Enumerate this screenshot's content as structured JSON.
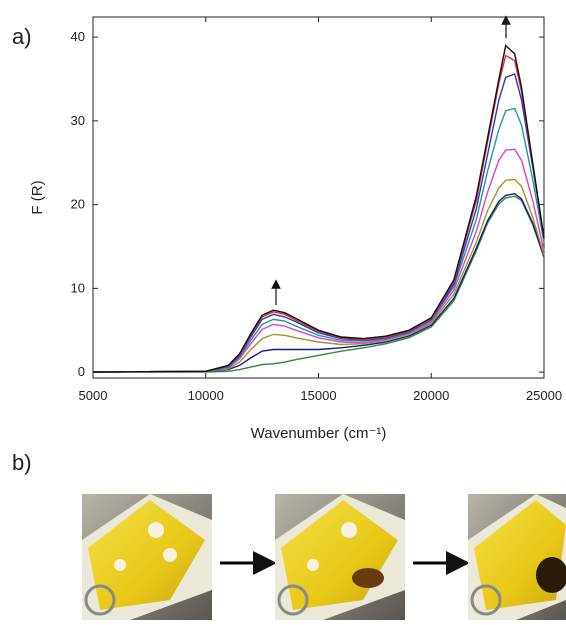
{
  "panel_labels": [
    "a)",
    "b)"
  ],
  "chart_data": {
    "type": "line",
    "x_label": "Wavenumber (cm⁻¹)",
    "y_label": "F (R)",
    "x": [
      5000,
      10000,
      11000,
      11500,
      12000,
      12500,
      13000,
      13500,
      14000,
      15000,
      16000,
      17000,
      18000,
      19000,
      20000,
      21000,
      22000,
      22500,
      23000,
      23300,
      23700,
      24000,
      24500,
      25000
    ],
    "series": [
      {
        "color": "#111111",
        "values": [
          0,
          0.1,
          0.8,
          2.2,
          4.6,
          6.8,
          7.4,
          7.1,
          6.4,
          5.0,
          4.2,
          4.0,
          4.3,
          5.0,
          6.5,
          11,
          21,
          28,
          35,
          39,
          38,
          34,
          25,
          16
        ]
      },
      {
        "color": "#e0302a",
        "values": [
          0,
          0.1,
          0.8,
          2.1,
          4.4,
          6.6,
          7.2,
          6.9,
          6.2,
          4.9,
          4.1,
          3.9,
          4.2,
          4.9,
          6.4,
          10.8,
          20.5,
          27.5,
          34.5,
          37.8,
          37.2,
          33.5,
          24.8,
          16
        ]
      },
      {
        "color": "#2a36c8",
        "values": [
          0,
          0.1,
          0.7,
          2.0,
          4.2,
          6.3,
          6.9,
          6.6,
          6.0,
          4.7,
          4.0,
          3.8,
          4.1,
          4.8,
          6.3,
          10.5,
          19.5,
          26,
          32.5,
          35.2,
          35.6,
          32.5,
          24.5,
          16
        ]
      },
      {
        "color": "#1f9a9a",
        "values": [
          0,
          0.1,
          0.6,
          1.8,
          3.8,
          5.7,
          6.3,
          6.1,
          5.5,
          4.4,
          3.8,
          3.7,
          4.0,
          4.7,
          6.2,
          10.2,
          18.2,
          24,
          29,
          31.2,
          31.5,
          29.5,
          23,
          15.5
        ]
      },
      {
        "color": "#e040d8",
        "values": [
          0,
          0.1,
          0.5,
          1.6,
          3.4,
          5.1,
          5.7,
          5.5,
          5.0,
          4.1,
          3.6,
          3.5,
          3.9,
          4.6,
          6.0,
          9.8,
          16.8,
          21.5,
          25.3,
          26.5,
          26.6,
          25.3,
          20.5,
          14.5
        ]
      },
      {
        "color": "#9a9a20",
        "values": [
          0,
          0.1,
          0.4,
          1.2,
          2.7,
          4.0,
          4.5,
          4.4,
          4.1,
          3.6,
          3.3,
          3.4,
          3.8,
          4.5,
          5.8,
          9.3,
          15.5,
          19.3,
          22,
          22.9,
          23,
          22.2,
          18.5,
          14
        ]
      },
      {
        "color": "#1a1a80",
        "values": [
          0,
          0.1,
          0.3,
          0.8,
          1.7,
          2.5,
          2.7,
          2.7,
          2.7,
          2.7,
          2.9,
          3.2,
          3.6,
          4.3,
          5.6,
          8.8,
          14.8,
          18.1,
          20.4,
          21.1,
          21.3,
          20.7,
          17.8,
          13.8
        ]
      },
      {
        "color": "#2e8b3a",
        "values": [
          0,
          0,
          0.1,
          0.3,
          0.6,
          0.9,
          1.0,
          1.2,
          1.5,
          2.0,
          2.5,
          2.9,
          3.4,
          4.1,
          5.4,
          8.5,
          14.5,
          17.8,
          20.1,
          20.8,
          21,
          20.5,
          17.6,
          13.7
        ]
      }
    ],
    "xlim": [
      5000,
      25000
    ],
    "xticks": [
      5000,
      10000,
      15000,
      20000,
      25000
    ],
    "ylim": [
      -0.7,
      42.4
    ],
    "yticks": [
      0,
      10,
      20,
      30,
      40
    ]
  }
}
